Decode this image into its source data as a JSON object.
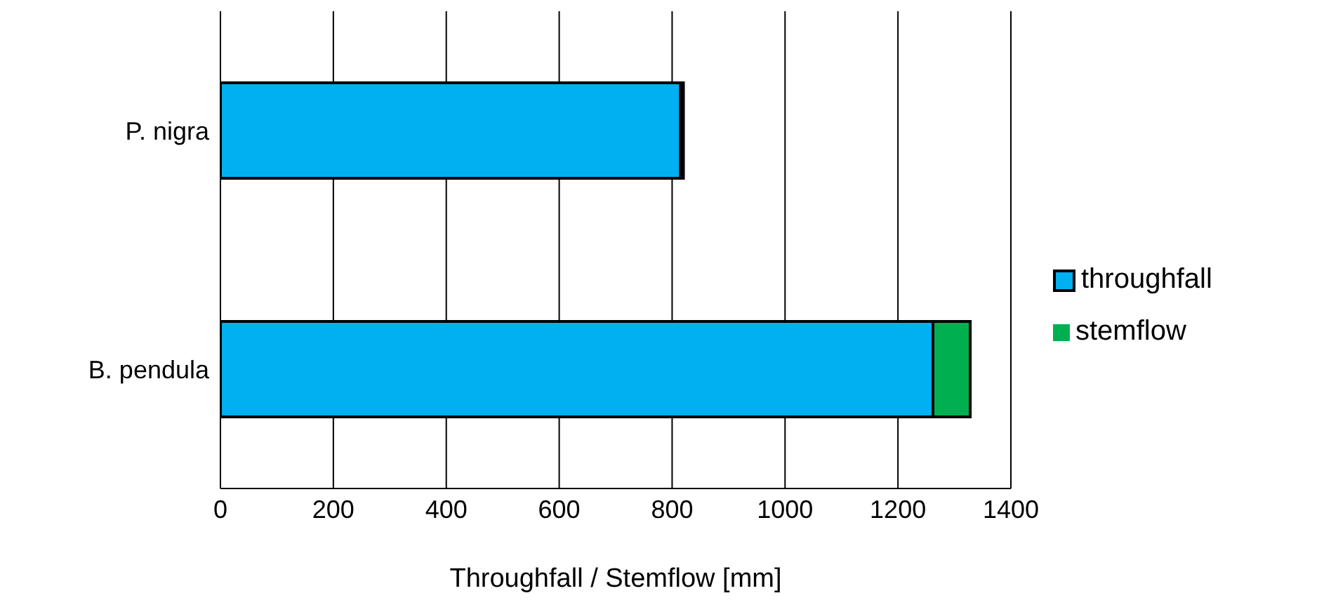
{
  "chart_data": {
    "type": "bar",
    "orientation": "horizontal",
    "stacked": true,
    "categories": [
      "P. nigra",
      "B. pendula"
    ],
    "series": [
      {
        "name": "throughfall",
        "color": "#00b0f0",
        "values": [
          815,
          1262
        ]
      },
      {
        "name": "stemflow",
        "color": "#00b050",
        "values": [
          5,
          66
        ]
      }
    ],
    "xlabel": "Throughfall / Stemflow [mm]",
    "xlim": [
      0,
      1400
    ],
    "xticks": [
      0,
      200,
      400,
      600,
      800,
      1000,
      1200,
      1400
    ],
    "grid": "x",
    "legend": "right"
  }
}
